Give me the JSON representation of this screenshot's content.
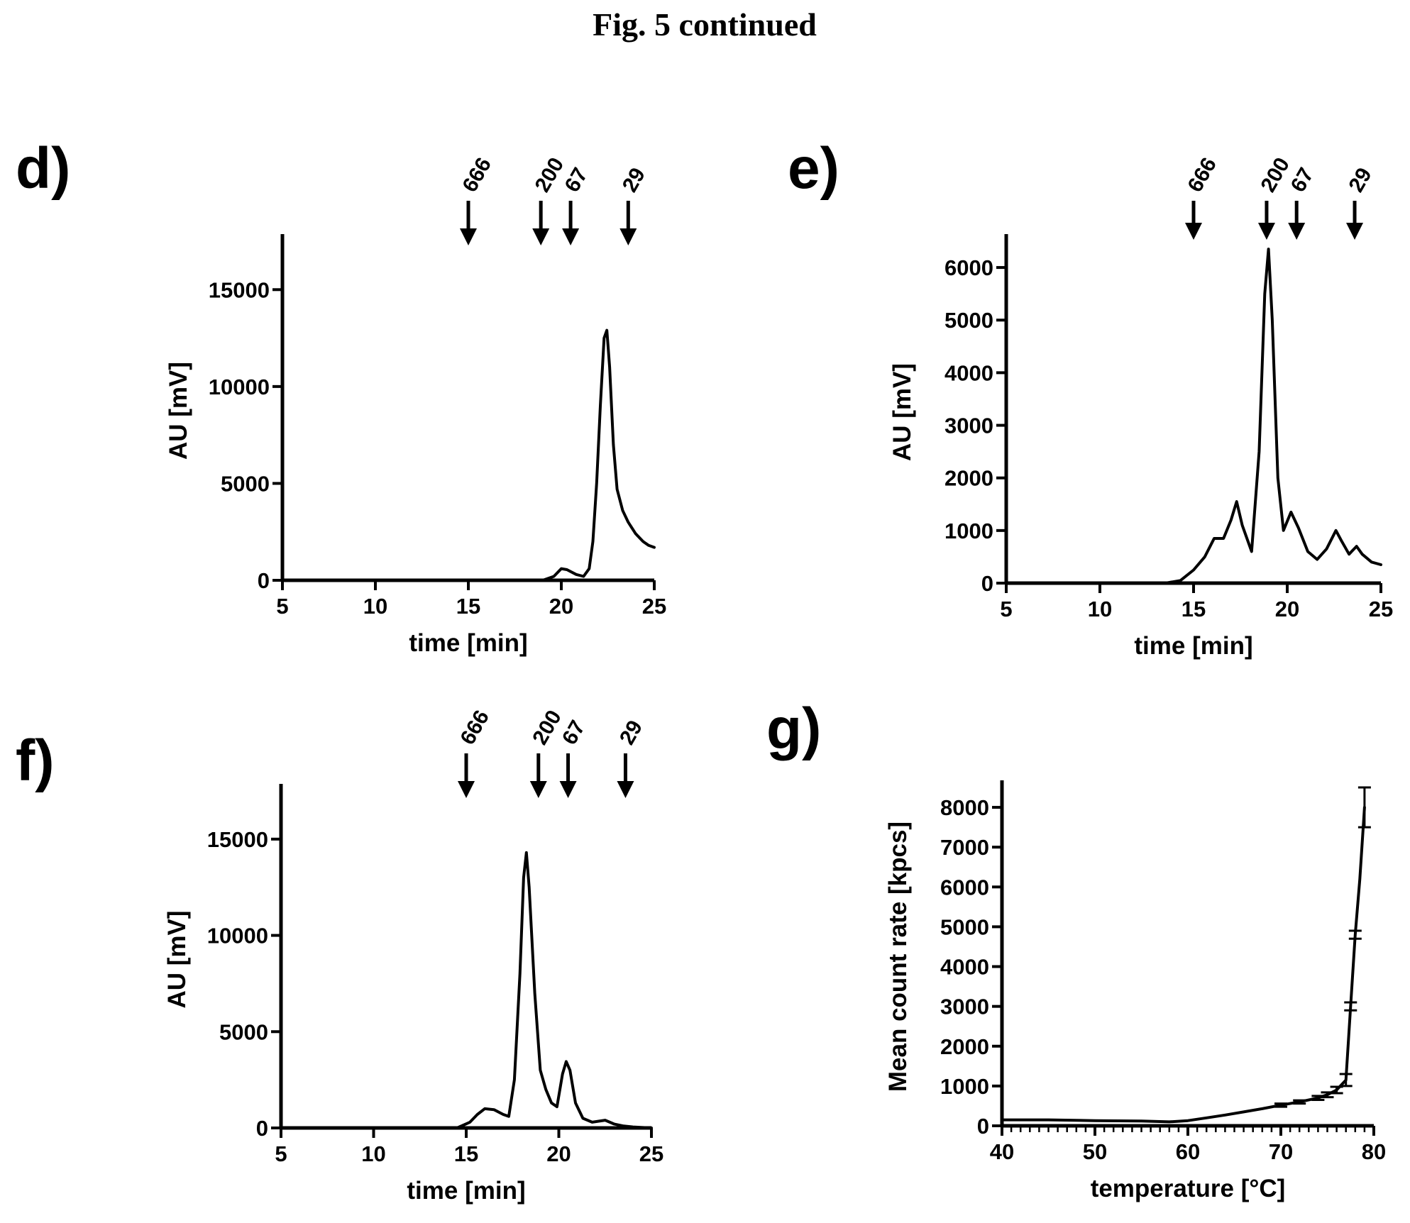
{
  "figure_title": "Fig. 5 continued",
  "chart_data": [
    {
      "id": "d",
      "panel_label": "d)",
      "type": "line",
      "xlabel": "time [min]",
      "ylabel": "AU [mV]",
      "xlim": [
        5,
        25
      ],
      "ylim": [
        0,
        17500
      ],
      "xticks": [
        5,
        10,
        15,
        20,
        25
      ],
      "yticks": [
        0,
        5000,
        10000,
        15000
      ],
      "markers": [
        {
          "label": "666",
          "x": 15
        },
        {
          "label": "200",
          "x": 18.9
        },
        {
          "label": "67",
          "x": 20.5
        },
        {
          "label": "29",
          "x": 23.6
        }
      ],
      "series": [
        {
          "x": [
            5,
            10,
            15,
            19,
            19.6,
            20,
            20.3,
            20.8,
            21.2,
            21.5,
            21.7,
            21.9,
            22.1,
            22.3,
            22.45,
            22.6,
            22.8,
            23.0,
            23.3,
            23.6,
            24.0,
            24.4,
            24.7,
            25.0
          ],
          "y": [
            0,
            0,
            0,
            0,
            200,
            600,
            550,
            300,
            200,
            600,
            2000,
            5000,
            9000,
            12500,
            12900,
            11000,
            7000,
            4700,
            3600,
            3000,
            2400,
            2000,
            1800,
            1700
          ]
        }
      ]
    },
    {
      "id": "e",
      "panel_label": "e)",
      "type": "line",
      "xlabel": "time [min]",
      "ylabel": "AU [mV]",
      "xlim": [
        5,
        25
      ],
      "ylim": [
        0,
        6500
      ],
      "xticks": [
        5,
        10,
        15,
        20,
        25
      ],
      "yticks": [
        0,
        1000,
        2000,
        3000,
        4000,
        5000,
        6000
      ],
      "markers": [
        {
          "label": "666",
          "x": 15
        },
        {
          "label": "200",
          "x": 18.9
        },
        {
          "label": "67",
          "x": 20.5
        },
        {
          "label": "29",
          "x": 23.6
        }
      ],
      "series": [
        {
          "x": [
            5,
            10,
            13.5,
            14.3,
            15,
            15.6,
            16.1,
            16.6,
            17.0,
            17.3,
            17.6,
            18.1,
            18.5,
            18.8,
            19.0,
            19.2,
            19.5,
            19.8,
            20.2,
            20.6,
            21.1,
            21.6,
            22.1,
            22.6,
            22.9,
            23.3,
            23.7,
            24.0,
            24.5,
            25.0
          ],
          "y": [
            0,
            0,
            0,
            50,
            250,
            500,
            850,
            850,
            1200,
            1550,
            1100,
            600,
            2500,
            5500,
            6350,
            5000,
            2000,
            1000,
            1350,
            1050,
            600,
            450,
            650,
            1000,
            800,
            550,
            700,
            550,
            400,
            350
          ]
        }
      ]
    },
    {
      "id": "f",
      "panel_label": "f)",
      "type": "line",
      "xlabel": "time [min]",
      "ylabel": "AU [mV]",
      "xlim": [
        5,
        25
      ],
      "ylim": [
        0,
        17500
      ],
      "xticks": [
        5,
        10,
        15,
        20,
        25
      ],
      "yticks": [
        0,
        5000,
        10000,
        15000
      ],
      "markers": [
        {
          "label": "666",
          "x": 15
        },
        {
          "label": "200",
          "x": 18.9
        },
        {
          "label": "67",
          "x": 20.5
        },
        {
          "label": "29",
          "x": 23.6
        }
      ],
      "series": [
        {
          "x": [
            5,
            10,
            14.5,
            15.2,
            15.6,
            16.0,
            16.5,
            17.0,
            17.3,
            17.6,
            17.9,
            18.1,
            18.25,
            18.4,
            18.7,
            19.0,
            19.3,
            19.6,
            19.9,
            20.2,
            20.4,
            20.6,
            20.9,
            21.3,
            21.8,
            22.5,
            23.0,
            23.5,
            24.0,
            25.0
          ],
          "y": [
            0,
            0,
            0,
            300,
            700,
            1000,
            950,
            700,
            600,
            2500,
            8000,
            13000,
            14300,
            12500,
            7000,
            3000,
            2000,
            1300,
            1100,
            2800,
            3450,
            3000,
            1300,
            500,
            300,
            400,
            200,
            100,
            50,
            0
          ]
        }
      ]
    },
    {
      "id": "g",
      "panel_label": "g)",
      "type": "line",
      "xlabel": "temperature [°C]",
      "ylabel": "Mean count rate [kpcs]",
      "xlim": [
        40,
        80
      ],
      "ylim": [
        0,
        8500
      ],
      "xticks": [
        40,
        50,
        60,
        70,
        80
      ],
      "yticks": [
        0,
        1000,
        2000,
        3000,
        4000,
        5000,
        6000,
        7000,
        8000
      ],
      "markers": [],
      "series": [
        {
          "x": [
            40,
            45,
            50,
            55,
            58,
            60,
            62,
            64,
            66,
            68,
            70,
            72,
            74,
            75,
            76,
            77,
            77.5,
            78,
            78.5,
            79
          ],
          "y": [
            150,
            150,
            130,
            120,
            100,
            130,
            200,
            270,
            350,
            430,
            520,
            600,
            700,
            780,
            900,
            1150,
            3000,
            4800,
            6200,
            8000
          ],
          "error": [
            0,
            0,
            0,
            0,
            0,
            0,
            0,
            0,
            0,
            0,
            40,
            40,
            50,
            60,
            80,
            150,
            100,
            100,
            0,
            500
          ]
        }
      ]
    }
  ]
}
